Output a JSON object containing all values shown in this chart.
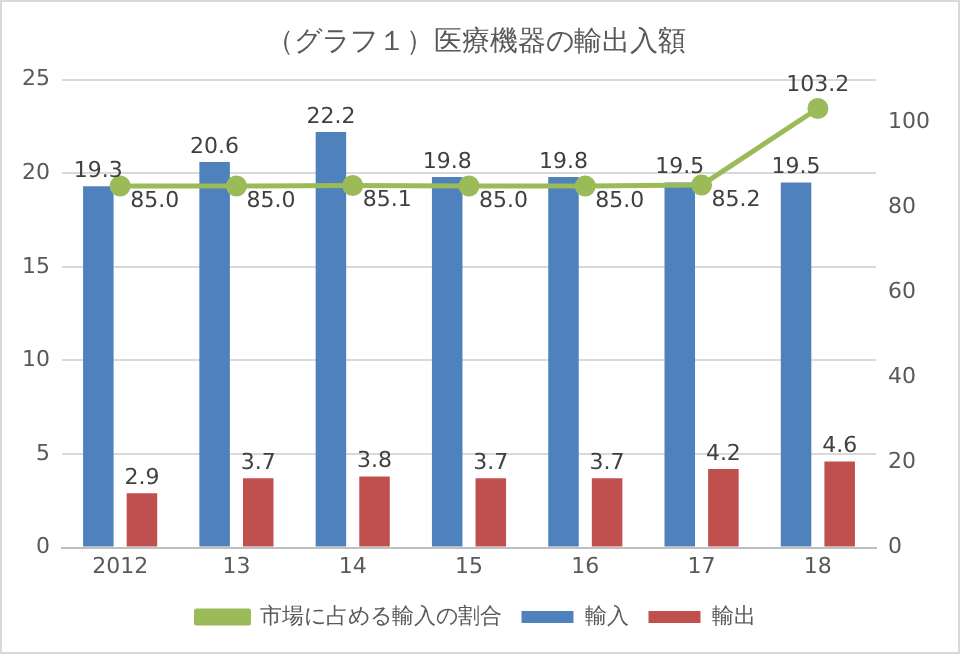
{
  "chart_data": {
    "type": "bar",
    "title": "（グラフ１）医療機器の輸出入額",
    "categories": [
      "2012",
      "13",
      "14",
      "15",
      "16",
      "17",
      "18"
    ],
    "series": [
      {
        "name": "輸入",
        "color": "#4f81bd",
        "values": [
          19.3,
          20.6,
          22.2,
          19.8,
          19.8,
          19.5,
          19.5
        ],
        "value_labels": [
          "19.3",
          "20.6",
          "22.2",
          "19.8",
          "19.8",
          "19.5",
          "19.5"
        ]
      },
      {
        "name": "輸出",
        "color": "#c0504d",
        "values": [
          2.9,
          3.7,
          3.8,
          3.7,
          3.7,
          4.2,
          4.6
        ],
        "value_labels": [
          "2.9",
          "3.7",
          "3.8",
          "3.7",
          "3.7",
          "4.2",
          "4.6"
        ]
      },
      {
        "name": "市場に占める輸入の割合",
        "type": "line",
        "axis": "y2",
        "color": "#9bbb59",
        "marker": "circle",
        "values": [
          85.0,
          85.0,
          85.1,
          85.0,
          85.0,
          85.2,
          103.2
        ],
        "value_labels": [
          "85.0",
          "85.0",
          "85.1",
          "85.0",
          "85.0",
          "85.2",
          "103.2"
        ]
      }
    ],
    "ylim": [
      0,
      25
    ],
    "yticks": [
      0,
      5,
      10,
      15,
      20,
      25
    ],
    "y2lim": [
      0,
      110
    ],
    "y2ticks": [
      0,
      20,
      40,
      60,
      80,
      100
    ],
    "grid": "y",
    "legend": "bottom"
  }
}
